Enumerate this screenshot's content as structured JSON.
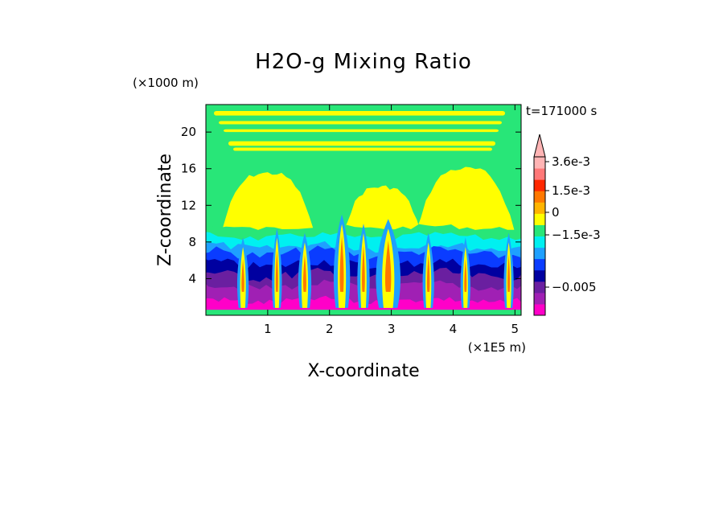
{
  "chart_data": {
    "type": "heatmap",
    "title": "H2O-g Mixing Ratio",
    "xlabel": "X-coordinate",
    "ylabel": "Z-coordinate",
    "x_unit": "(×1E5 m)",
    "y_unit": "(×1000 m)",
    "time_label": "t=171000 s",
    "xlim": [
      0,
      5.1
    ],
    "ylim": [
      0,
      23
    ],
    "x_ticks": [
      1,
      2,
      3,
      4,
      5
    ],
    "y_ticks": [
      4,
      8,
      12,
      16,
      20
    ],
    "x_tick_labels": [
      "1",
      "2",
      "3",
      "4",
      "5"
    ],
    "y_tick_labels": [
      "4",
      "8",
      "12",
      "16",
      "20"
    ],
    "colorbar": {
      "levels_colors": [
        "#ff00c8",
        "#a020b4",
        "#6a1fa0",
        "#0000a0",
        "#0a3cff",
        "#1ea0ff",
        "#00f0f0",
        "#28e678",
        "#ffff00",
        "#ffb400",
        "#ff7800",
        "#ff2800",
        "#ff7878",
        "#ffb4b4"
      ],
      "tick_labels": [
        "3.6e-3",
        "1.5e-3",
        "0",
        "−1.5e-3",
        "−0.005"
      ],
      "tick_values": [
        0.0036,
        0.0015,
        0,
        -0.0015,
        -0.005
      ],
      "extend": "max"
    },
    "grid": false,
    "features": {
      "plumes": [
        {
          "x": 0.6,
          "top": 8.5,
          "w": 0.14
        },
        {
          "x": 1.15,
          "top": 9.5,
          "w": 0.12
        },
        {
          "x": 1.6,
          "top": 9,
          "w": 0.16
        },
        {
          "x": 2.2,
          "top": 11,
          "w": 0.2
        },
        {
          "x": 2.55,
          "top": 10,
          "w": 0.15
        },
        {
          "x": 2.95,
          "top": 10.5,
          "w": 0.3
        },
        {
          "x": 3.6,
          "top": 9,
          "w": 0.14
        },
        {
          "x": 4.2,
          "top": 8.5,
          "w": 0.12
        },
        {
          "x": 4.9,
          "top": 9,
          "w": 0.12
        }
      ],
      "moist_domes": [
        {
          "x": 1.0,
          "w": 1.5,
          "top": 15.5
        },
        {
          "x": 2.85,
          "w": 1.25,
          "top": 14
        },
        {
          "x": 4.2,
          "w": 1.6,
          "top": 16
        }
      ]
    }
  }
}
